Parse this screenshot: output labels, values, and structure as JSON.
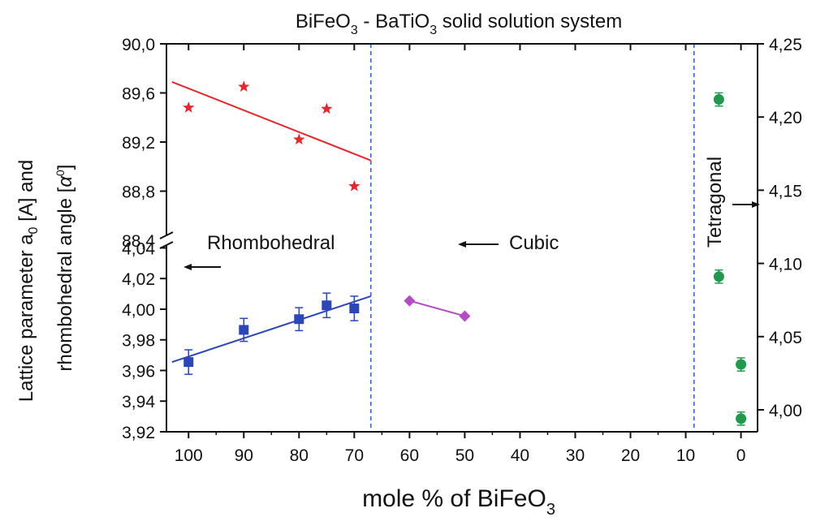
{
  "chart_data": {
    "type": "scatter",
    "title": "BiFeO",
    "title_sub": "3",
    "title_mid": " - BaTiO",
    "title_sub2": "3",
    "title_end": " solid solution system",
    "xlabel": "mole % of BiFeO",
    "xlabel_sub": "3",
    "ylabel_line1_pre": "Lattice parameter a",
    "ylabel_line1_sub": "0",
    "ylabel_line1_post": " [A] and",
    "ylabel_line2_pre": "rhombohedral angle [",
    "ylabel_line2_alpha": "α",
    "ylabel_line2_sup": "0",
    "ylabel_line2_post": "]",
    "xlim": [
      104,
      -3
    ],
    "x_ticks": [
      "100",
      "90",
      "80",
      "70",
      "60",
      "50",
      "40",
      "30",
      "20",
      "10",
      "0"
    ],
    "left_axis_upper": {
      "range": [
        88.4,
        90.0
      ],
      "ticks": [
        "88,4",
        "88,8",
        "89,2",
        "89,6",
        "90,0"
      ]
    },
    "left_axis_lower": {
      "range": [
        3.92,
        4.045
      ],
      "ticks": [
        "3,92",
        "3,94",
        "3,96",
        "3,98",
        "4,00",
        "4,02",
        "4,04"
      ]
    },
    "right_axis": {
      "range": [
        3.985,
        4.25
      ],
      "ticks": [
        "4,00",
        "4,05",
        "4,10",
        "4,15",
        "4,20",
        "4,25"
      ]
    },
    "phase_boundaries_x": [
      67,
      8.5
    ],
    "annotations": {
      "rhombohedral": "Rhombohedral",
      "cubic": "Cubic",
      "tetragonal": "Tetragonal"
    },
    "series": [
      {
        "axis": "upper",
        "marker": "star",
        "color": "#e8262b",
        "points": [
          {
            "x": 100,
            "y": 89.48
          },
          {
            "x": 90,
            "y": 89.65
          },
          {
            "x": 80,
            "y": 89.22
          },
          {
            "x": 75,
            "y": 89.47
          },
          {
            "x": 70,
            "y": 88.84
          }
        ],
        "fit": {
          "x": [
            103,
            67
          ],
          "y": [
            89.69,
            89.05
          ]
        }
      },
      {
        "axis": "lower",
        "marker": "square",
        "color": "#2b46b8",
        "points": [
          {
            "x": 100,
            "y": 3.9655,
            "err": 0.008
          },
          {
            "x": 90,
            "y": 3.9865,
            "err": 0.0075
          },
          {
            "x": 80,
            "y": 3.9935,
            "err": 0.0075
          },
          {
            "x": 75,
            "y": 4.0025,
            "err": 0.008
          },
          {
            "x": 70,
            "y": 4.0005,
            "err": 0.008
          }
        ],
        "fit": {
          "x": [
            103,
            67
          ],
          "y": [
            3.9655,
            4.0085
          ]
        }
      },
      {
        "axis": "lower",
        "marker": "diamond",
        "color": "#b44cc4",
        "line": true,
        "points": [
          {
            "x": 60,
            "y": 4.0055
          },
          {
            "x": 50,
            "y": 3.9955
          }
        ]
      },
      {
        "axis": "right",
        "marker": "circle",
        "color": "#1e9a4a",
        "points": [
          {
            "x": 4,
            "y": 4.212,
            "err": 0.0045
          },
          {
            "x": 4,
            "y": 4.091,
            "err": 0.0045
          },
          {
            "x": 0,
            "y": 4.031,
            "err": 0.0045
          },
          {
            "x": 0,
            "y": 3.994,
            "err": 0.0045
          }
        ]
      }
    ]
  }
}
